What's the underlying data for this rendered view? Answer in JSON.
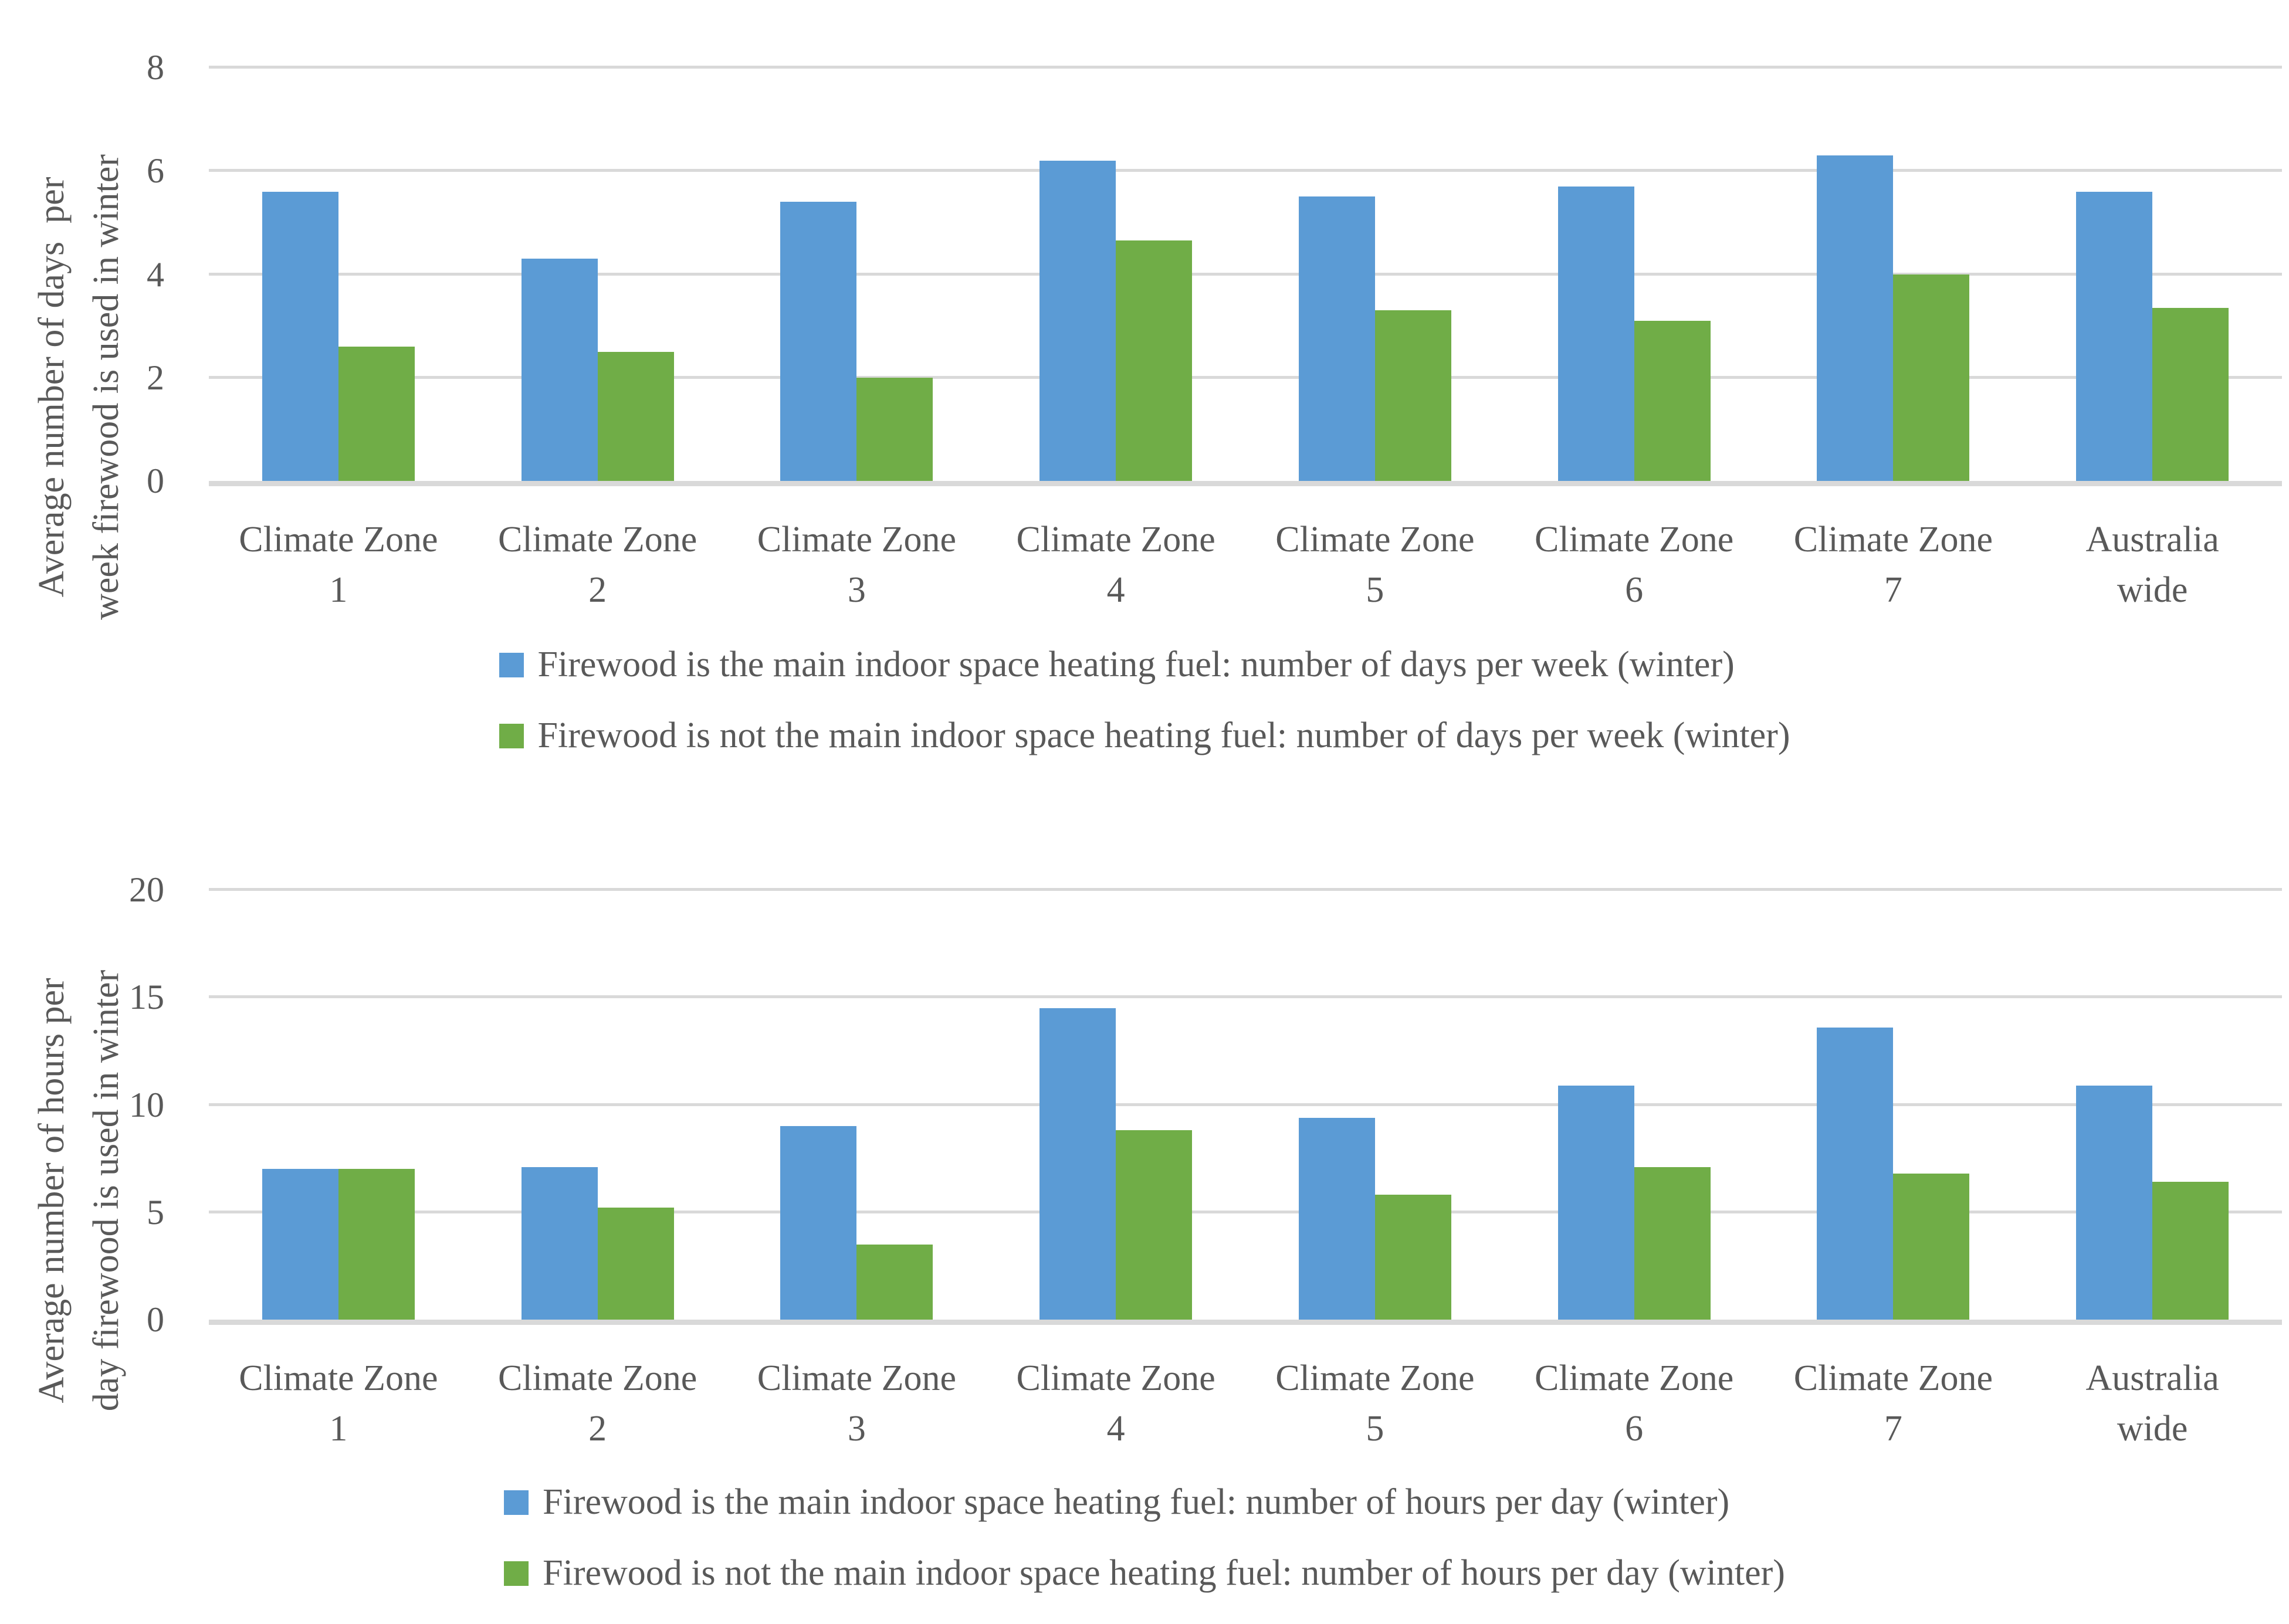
{
  "colors": {
    "series_main_blue": "#5B9BD5",
    "series_not_main_green": "#70AD47",
    "gridline": "#D9D9D9",
    "axis_line": "#D9D9D9",
    "text": "#595959",
    "background": "#FFFFFF"
  },
  "chart_data": [
    {
      "type": "bar",
      "title": "",
      "xlabel": "",
      "ylabel": "Average number of days  per\nweek firewood is used in winter",
      "ylim": [
        0,
        8
      ],
      "yticks": [
        0,
        2,
        4,
        6,
        8
      ],
      "grid": true,
      "legend_position": "bottom",
      "categories": [
        "Climate Zone 1",
        "Climate Zone 2",
        "Climate Zone 3",
        "Climate Zone 4",
        "Climate Zone 5",
        "Climate Zone 6",
        "Climate Zone 7",
        "Australia wide"
      ],
      "category_lines": [
        [
          "Climate Zone",
          "1"
        ],
        [
          "Climate Zone",
          "2"
        ],
        [
          "Climate Zone",
          "3"
        ],
        [
          "Climate Zone",
          "4"
        ],
        [
          "Climate Zone",
          "5"
        ],
        [
          "Climate Zone",
          "6"
        ],
        [
          "Climate Zone",
          "7"
        ],
        [
          "Australia",
          "wide"
        ]
      ],
      "series": [
        {
          "name": "Firewood is the main indoor space heating fuel: number of days per week (winter)",
          "color": "#5B9BD5",
          "values": [
            5.6,
            4.3,
            5.4,
            6.2,
            5.5,
            5.7,
            6.3,
            5.6
          ]
        },
        {
          "name": "Firewood is not the main indoor space heating fuel: number of days per week (winter)",
          "color": "#70AD47",
          "values": [
            2.6,
            2.5,
            2.0,
            4.65,
            3.3,
            3.1,
            4.0,
            3.35
          ]
        }
      ]
    },
    {
      "type": "bar",
      "title": "",
      "xlabel": "",
      "ylabel": "Average number of hours per\nday firewood is used in winter",
      "ylim": [
        0,
        20
      ],
      "yticks": [
        0,
        5,
        10,
        15,
        20
      ],
      "grid": true,
      "legend_position": "bottom",
      "categories": [
        "Climate Zone 1",
        "Climate Zone 2",
        "Climate Zone 3",
        "Climate Zone 4",
        "Climate Zone 5",
        "Climate Zone 6",
        "Climate Zone 7",
        "Australia wide"
      ],
      "category_lines": [
        [
          "Climate Zone",
          "1"
        ],
        [
          "Climate Zone",
          "2"
        ],
        [
          "Climate Zone",
          "3"
        ],
        [
          "Climate Zone",
          "4"
        ],
        [
          "Climate Zone",
          "5"
        ],
        [
          "Climate Zone",
          "6"
        ],
        [
          "Climate Zone",
          "7"
        ],
        [
          "Australia",
          "wide"
        ]
      ],
      "series": [
        {
          "name": "Firewood is the main indoor space heating fuel: number of hours per day (winter)",
          "color": "#5B9BD5",
          "values": [
            7.0,
            7.1,
            9.0,
            14.5,
            9.4,
            10.9,
            13.6,
            10.9
          ]
        },
        {
          "name": "Firewood is not the main indoor space heating fuel: number of hours per day (winter)",
          "color": "#70AD47",
          "values": [
            7.0,
            5.2,
            3.5,
            8.8,
            5.8,
            7.1,
            6.8,
            6.4
          ]
        }
      ]
    }
  ]
}
